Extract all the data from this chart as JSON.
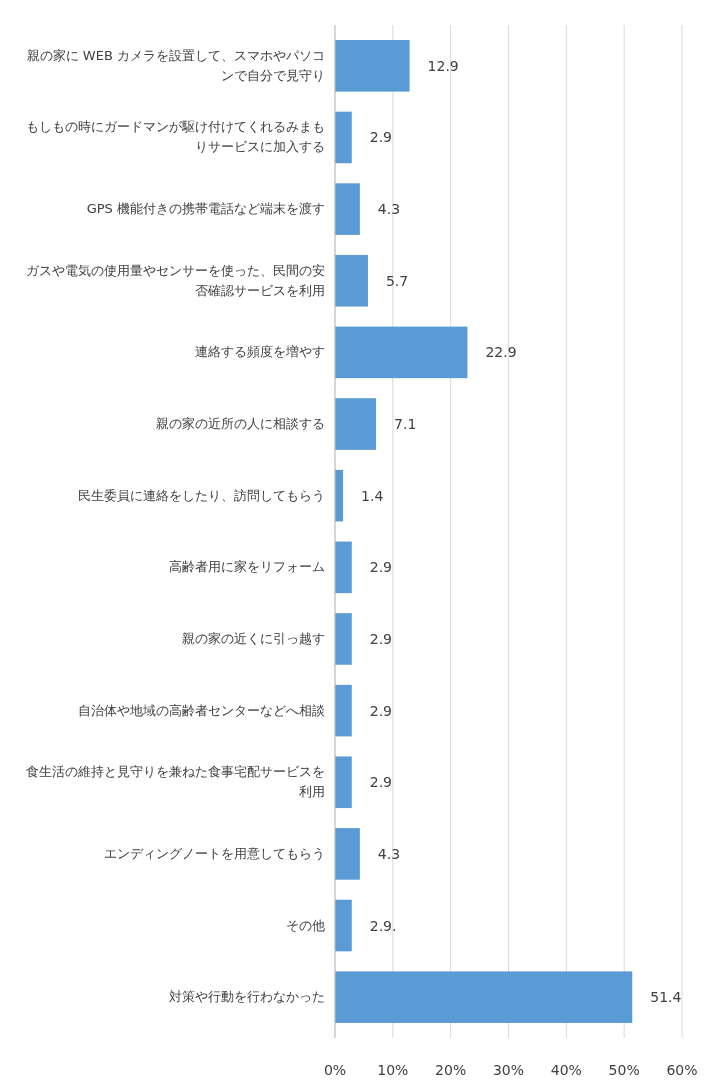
{
  "chart_data": {
    "type": "bar",
    "orientation": "horizontal",
    "categories": [
      "親の家に WEB カメラを設置して、スマホやパソコンで自分で見守り",
      "もしもの時にガードマンが駆け付けてくれるみまもりサービスに加入する",
      "GPS 機能付きの携帯電話など端末を渡す",
      "ガスや電気の使用量やセンサーを使った、民間の安否確認サービスを利用",
      "連絡する頻度を増やす",
      "親の家の近所の人に相談する",
      "民生委員に連絡をしたり、訪問してもらう",
      "高齢者用に家をリフォーム",
      "親の家の近くに引っ越す",
      "自治体や地域の高齢者センターなどへ相談",
      "食生活の維持と見守りを兼ねた食事宅配サービスを利用",
      "エンディングノートを用意してもらう",
      "その他",
      "対策や行動を行わなかった"
    ],
    "values": [
      12.9,
      2.9,
      4.3,
      5.7,
      22.9,
      7.1,
      1.4,
      2.9,
      2.9,
      2.9,
      2.9,
      4.3,
      2.9,
      51.4
    ],
    "value_labels": [
      "12.9",
      "2.9",
      "4.3",
      "5.7",
      "22.9",
      "7.1",
      "1.4",
      "2.9",
      "2.9",
      "2.9",
      "2.9",
      "4.3",
      "2.9.",
      "51.4"
    ],
    "color": "#5b9bd5",
    "xlim": [
      0,
      60
    ],
    "xticks": [
      {
        "value": 0,
        "label": "0%"
      },
      {
        "value": 10,
        "label": "10%"
      },
      {
        "value": 20,
        "label": "20%"
      },
      {
        "value": 30,
        "label": "30%"
      },
      {
        "value": 40,
        "label": "40%"
      },
      {
        "value": 50,
        "label": "50%"
      },
      {
        "value": 60,
        "label": "60%"
      }
    ],
    "grid": "x"
  }
}
